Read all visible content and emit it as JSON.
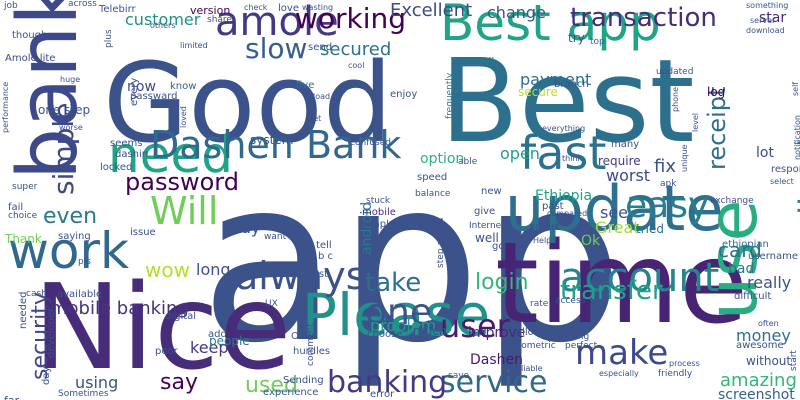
{
  "cloud": {
    "words": [
      {
        "text": "app",
        "color": "#3b528b"
      },
      {
        "text": "Good",
        "color": "#3b528b"
      },
      {
        "text": "Nice",
        "color": "#472c7a"
      },
      {
        "text": "Best",
        "color": "#2d708e"
      },
      {
        "text": "time",
        "color": "#482475"
      },
      {
        "text": "use",
        "color": "#27ad81"
      },
      {
        "text": "bank",
        "color": "#3e4989"
      },
      {
        "text": "update",
        "color": "#2d708e"
      },
      {
        "text": "Please",
        "color": "#21918c"
      },
      {
        "text": "Best app",
        "color": "#20a386"
      },
      {
        "text": "need",
        "color": "#20a386"
      },
      {
        "text": "work",
        "color": "#31688e"
      },
      {
        "text": "Dashen Bank",
        "color": "#31688e"
      },
      {
        "text": "fast",
        "color": "#2c728e"
      },
      {
        "text": "account",
        "color": "#25848e"
      },
      {
        "text": "always",
        "color": "#3b528b"
      },
      {
        "text": "easy",
        "color": "#287d8e"
      },
      {
        "text": "amole",
        "color": "#443a83"
      },
      {
        "text": "Will",
        "color": "#6ece58"
      },
      {
        "text": "one",
        "color": "#3b528b"
      },
      {
        "text": "make",
        "color": "#3e4989"
      },
      {
        "text": "user",
        "color": "#481b6d"
      },
      {
        "text": "service",
        "color": "#31688e"
      },
      {
        "text": "banking",
        "color": "#443a83"
      },
      {
        "text": "application",
        "color": "#287d8e"
      },
      {
        "text": "simple",
        "color": "#3e4989"
      },
      {
        "text": "slow",
        "color": "#355f8d"
      },
      {
        "text": "working",
        "color": "#440154"
      },
      {
        "text": "transaction",
        "color": "#472c7a"
      },
      {
        "text": "transfer",
        "color": "#1fa188"
      },
      {
        "text": "take",
        "color": "#2d708e"
      },
      {
        "text": "password",
        "color": "#440154"
      },
      {
        "text": "receipt",
        "color": "#2d708e"
      },
      {
        "text": "security",
        "color": "#404588"
      },
      {
        "text": "login",
        "color": "#35b779"
      },
      {
        "text": "even",
        "color": "#2a788e"
      },
      {
        "text": "say",
        "color": "#440154"
      },
      {
        "text": "used",
        "color": "#6ece58"
      },
      {
        "text": "wow",
        "color": "#b5de2b"
      },
      {
        "text": "mobile banking",
        "color": "#463480"
      },
      {
        "text": "Excellent",
        "color": "#3e4989"
      },
      {
        "text": "secured",
        "color": "#2c728e"
      },
      {
        "text": "customer",
        "color": "#21918c"
      },
      {
        "text": "payment",
        "color": "#2d708e"
      },
      {
        "text": "problem",
        "color": "#1f9e89"
      },
      {
        "text": "card",
        "color": "#2d708e"
      },
      {
        "text": "amazing",
        "color": "#35b779"
      },
      {
        "text": "keep",
        "color": "#443a83"
      },
      {
        "text": "fix",
        "color": "#3b528b"
      },
      {
        "text": "open",
        "color": "#1fa188"
      },
      {
        "text": "Great",
        "color": "#a5db36"
      },
      {
        "text": "see",
        "color": "#3b528b"
      },
      {
        "text": "worst",
        "color": "#3e4989"
      },
      {
        "text": "really",
        "color": "#3b528b"
      },
      {
        "text": "long",
        "color": "#3b528b"
      },
      {
        "text": "way",
        "color": "#3b528b"
      },
      {
        "text": "Ethiopia",
        "color": "#1fa188"
      },
      {
        "text": "money",
        "color": "#2d708e"
      },
      {
        "text": "screenshot",
        "color": "#355f8d"
      },
      {
        "text": "Ok",
        "color": "#6ece58"
      },
      {
        "text": "bad",
        "color": "#2a788e"
      },
      {
        "text": "lot",
        "color": "#3e4989"
      },
      {
        "text": "change",
        "color": "#3b528b"
      },
      {
        "text": "star",
        "color": "#482878"
      },
      {
        "text": "now",
        "color": "#3e4989"
      },
      {
        "text": "secure",
        "color": "#bddf26"
      },
      {
        "text": "Thank",
        "color": "#6ece58"
      },
      {
        "text": "system",
        "color": "#3b528b"
      },
      {
        "text": "option",
        "color": "#2db27d"
      },
      {
        "text": "require",
        "color": "#443a83"
      },
      {
        "text": "tried",
        "color": "#2d708e"
      },
      {
        "text": "ethiopian",
        "color": "#2d708e"
      },
      {
        "text": "android",
        "color": "#2a788e"
      },
      {
        "text": "improve",
        "color": "#482878"
      },
      {
        "text": "Dashen",
        "color": "#481b6d"
      },
      {
        "text": "mobile",
        "color": "#472c7a"
      },
      {
        "text": "people",
        "color": "#2a788e"
      },
      {
        "text": "much",
        "color": "#3b528b"
      },
      {
        "text": "respond",
        "color": "#3b528b"
      },
      {
        "text": "know",
        "color": "#355f8d"
      },
      {
        "text": "log",
        "color": "#440154"
      },
      {
        "text": "Amole lite",
        "color": "#3e4989"
      },
      {
        "text": "Telebirr",
        "color": "#3b528b"
      },
      {
        "text": "one step",
        "color": "#3b528b"
      },
      {
        "text": "try",
        "color": "#3b528b"
      },
      {
        "text": "UI",
        "color": "#2c728e"
      },
      {
        "text": "love",
        "color": "#3b528b"
      },
      {
        "text": "version",
        "color": "#440154"
      },
      {
        "text": "send",
        "color": "#3b528b"
      },
      {
        "text": "many",
        "color": "#3b528b"
      },
      {
        "text": "top",
        "color": "#31688e"
      },
      {
        "text": "branch",
        "color": "#3b528b"
      },
      {
        "text": "updated",
        "color": "#3b528b"
      },
      {
        "text": "every",
        "color": "#3b528b"
      },
      {
        "text": "passward",
        "color": "#3b528b"
      },
      {
        "text": "five",
        "color": "#2a788e"
      },
      {
        "text": "enjoy",
        "color": "#3b528b"
      },
      {
        "text": "frequently",
        "color": "#2a788e"
      },
      {
        "text": "dashin",
        "color": "#3b528b"
      },
      {
        "text": "locked",
        "color": "#3b528b"
      },
      {
        "text": "issue",
        "color": "#3b528b"
      },
      {
        "text": "fail",
        "color": "#3b528b"
      },
      {
        "text": "saying",
        "color": "#3b528b"
      },
      {
        "text": "choice",
        "color": "#3b528b"
      },
      {
        "text": "pls",
        "color": "#3b528b"
      },
      {
        "text": "available",
        "color": "#3b528b"
      },
      {
        "text": "developer",
        "color": "#3b528b"
      },
      {
        "text": "digital",
        "color": "#3b528b"
      },
      {
        "text": "poor",
        "color": "#3b528b"
      },
      {
        "text": "add",
        "color": "#3b528b"
      },
      {
        "text": "OTP",
        "color": "#3b528b"
      },
      {
        "text": "hurdles",
        "color": "#3b528b"
      },
      {
        "text": "comment",
        "color": "#3b528b"
      },
      {
        "text": "Sending",
        "color": "#3b528b"
      },
      {
        "text": "experience",
        "color": "#3b528b"
      },
      {
        "text": "Sometimes",
        "color": "#3b528b"
      },
      {
        "text": "using",
        "color": "#3b528b"
      },
      {
        "text": "day",
        "color": "#3b528b"
      },
      {
        "text": "cash",
        "color": "#3b528b"
      },
      {
        "text": "needed",
        "color": "#3b528b"
      },
      {
        "text": "far",
        "color": "#3b528b"
      },
      {
        "text": "job",
        "color": "#3b528b"
      },
      {
        "text": "though",
        "color": "#3b528b"
      },
      {
        "text": "across",
        "color": "#3b528b"
      },
      {
        "text": "plus",
        "color": "#3b528b"
      },
      {
        "text": "others",
        "color": "#3b528b"
      },
      {
        "text": "share",
        "color": "#3b528b"
      },
      {
        "text": "check",
        "color": "#3b528b"
      },
      {
        "text": "wasting",
        "color": "#3b528b"
      },
      {
        "text": "limited",
        "color": "#3b528b"
      },
      {
        "text": "cool",
        "color": "#3b528b"
      },
      {
        "text": "huge",
        "color": "#3b528b"
      },
      {
        "text": "load",
        "color": "#3b528b"
      },
      {
        "text": "let",
        "color": "#3b528b"
      },
      {
        "text": "loved",
        "color": "#3b528b"
      },
      {
        "text": "worse",
        "color": "#3b528b"
      },
      {
        "text": "seems",
        "color": "#3b528b"
      },
      {
        "text": "performance",
        "color": "#3b528b"
      },
      {
        "text": "super",
        "color": "#3b528b"
      },
      {
        "text": "confused",
        "color": "#3b528b"
      },
      {
        "text": "speed",
        "color": "#3b528b"
      },
      {
        "text": "balance",
        "color": "#3b528b"
      },
      {
        "text": "able",
        "color": "#3b528b"
      },
      {
        "text": "everything",
        "color": "#3b528b"
      },
      {
        "text": "think",
        "color": "#3b528b"
      },
      {
        "text": "apk",
        "color": "#3b528b"
      },
      {
        "text": "new",
        "color": "#3b528b"
      },
      {
        "text": "give",
        "color": "#3b528b"
      },
      {
        "text": "past",
        "color": "#3b528b"
      },
      {
        "text": "smart",
        "color": "#3b528b"
      },
      {
        "text": "compared",
        "color": "#3b528b"
      },
      {
        "text": "stuck",
        "color": "#3b528b"
      },
      {
        "text": "simply",
        "color": "#3b528b"
      },
      {
        "text": "step ahead",
        "color": "#3b528b"
      },
      {
        "text": "Internet",
        "color": "#3b528b"
      },
      {
        "text": "well",
        "color": "#3b528b"
      },
      {
        "text": "go",
        "color": "#3b528b"
      },
      {
        "text": "Help",
        "color": "#3b528b"
      },
      {
        "text": "tell",
        "color": "#3b528b"
      },
      {
        "text": "b c",
        "color": "#3b528b"
      },
      {
        "text": "want",
        "color": "#3b528b"
      },
      {
        "text": "UX",
        "color": "#3b528b"
      },
      {
        "text": "last",
        "color": "#3b528b"
      },
      {
        "text": "allow",
        "color": "#3b528b"
      },
      {
        "text": "rate",
        "color": "#3b528b"
      },
      {
        "text": "access",
        "color": "#3b528b"
      },
      {
        "text": "thing",
        "color": "#3b528b"
      },
      {
        "text": "perfect",
        "color": "#3b528b"
      },
      {
        "text": "biometric",
        "color": "#3b528b"
      },
      {
        "text": "choose",
        "color": "#3b528b"
      },
      {
        "text": "reliable",
        "color": "#3b528b"
      },
      {
        "text": "save",
        "color": "#3b528b"
      },
      {
        "text": "error",
        "color": "#3b528b"
      },
      {
        "text": "especially",
        "color": "#3b528b"
      },
      {
        "text": "friendly",
        "color": "#3b528b"
      },
      {
        "text": "process",
        "color": "#3b528b"
      },
      {
        "text": "without",
        "color": "#3b528b"
      },
      {
        "text": "awesome",
        "color": "#3b528b"
      },
      {
        "text": "difficult",
        "color": "#3b528b"
      },
      {
        "text": "often",
        "color": "#3b528b"
      },
      {
        "text": "username",
        "color": "#3b528b"
      },
      {
        "text": "exchange",
        "color": "#3b528b"
      },
      {
        "text": "select",
        "color": "#3b528b"
      },
      {
        "text": "notification",
        "color": "#3b528b"
      },
      {
        "text": "level",
        "color": "#3b528b"
      },
      {
        "text": "unique",
        "color": "#3b528b"
      },
      {
        "text": "phone",
        "color": "#3b528b"
      },
      {
        "text": "self",
        "color": "#3b528b"
      },
      {
        "text": "download",
        "color": "#3b528b"
      },
      {
        "text": "server",
        "color": "#3b528b"
      },
      {
        "text": "something",
        "color": "#3b528b"
      },
      {
        "text": "start",
        "color": "#3b528b"
      }
    ]
  }
}
